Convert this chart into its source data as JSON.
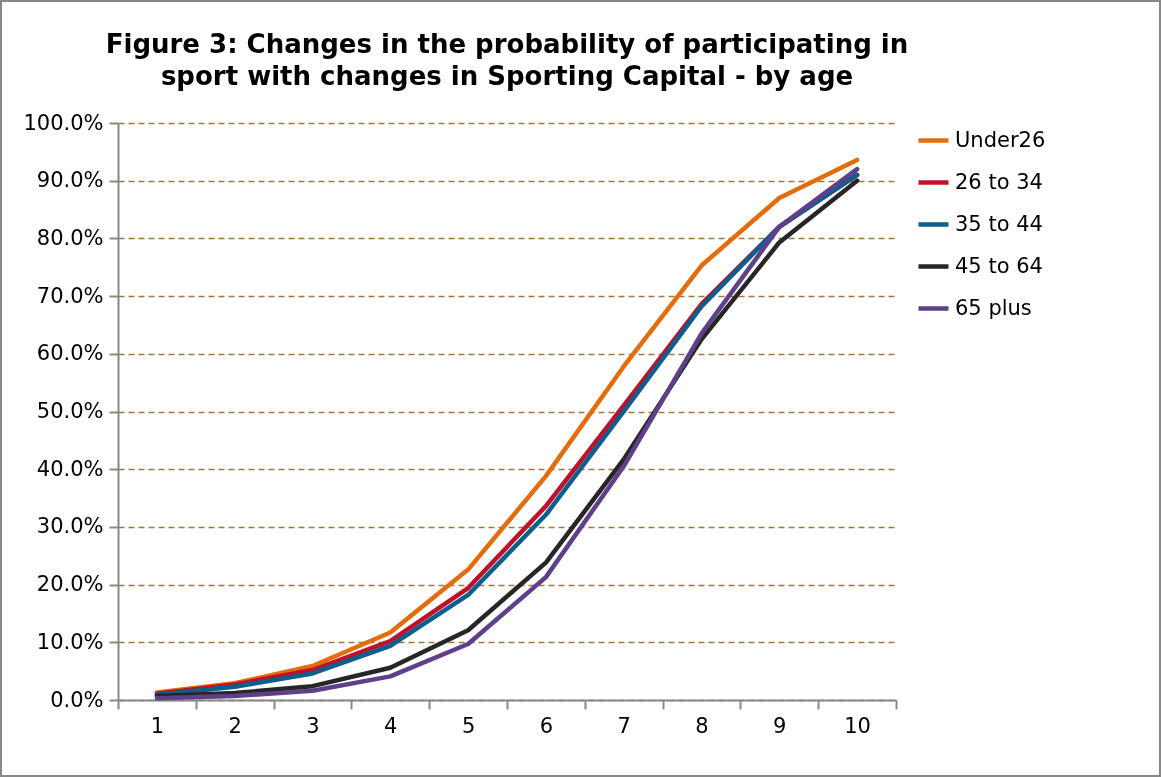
{
  "chart_data": {
    "type": "line",
    "title": "Figure 3: Changes in the probability of participating in sport with changes in Sporting Capital - by age",
    "categories": [
      "1",
      "2",
      "3",
      "4",
      "5",
      "6",
      "7",
      "8",
      "9",
      "10"
    ],
    "series": [
      {
        "name": "Under26",
        "color": "#e46c0a",
        "values": [
          1.3,
          2.9,
          5.9,
          11.7,
          22.6,
          38.8,
          57.8,
          75.3,
          87,
          93.6
        ]
      },
      {
        "name": "26 to 34",
        "color": "#c0102a",
        "values": [
          1.1,
          2.7,
          5.2,
          10.2,
          19.4,
          33.6,
          51,
          68.6,
          82,
          91
        ]
      },
      {
        "name": "35 to 44",
        "color": "#0a5f8f",
        "values": [
          0.9,
          2.3,
          4.6,
          9.4,
          18.2,
          32.1,
          50,
          68.2,
          82,
          91
        ]
      },
      {
        "name": "45 to 64",
        "color": "#262626",
        "values": [
          0.7,
          1.2,
          2.4,
          5.6,
          12.1,
          23.8,
          41.7,
          62.5,
          79.3,
          90
        ]
      },
      {
        "name": "65 plus",
        "color": "#5f3f8a",
        "values": [
          0.3,
          0.7,
          1.6,
          4.1,
          9.7,
          21.3,
          40.5,
          63.5,
          82,
          92
        ]
      }
    ],
    "ylim": [
      0,
      100
    ],
    "yticks": [
      {
        "value": 0,
        "label": "0.0%"
      },
      {
        "value": 10,
        "label": "10.0%"
      },
      {
        "value": 20,
        "label": "20.0%"
      },
      {
        "value": 30,
        "label": "30.0%"
      },
      {
        "value": 40,
        "label": "40.0%"
      },
      {
        "value": 50,
        "label": "50.0%"
      },
      {
        "value": 60,
        "label": "60.0%"
      },
      {
        "value": 70,
        "label": "70.0%"
      },
      {
        "value": 80,
        "label": "80.0%"
      },
      {
        "value": 90,
        "label": "90.0%"
      },
      {
        "value": 100,
        "label": "100.0%"
      }
    ],
    "grid": "y",
    "legend": "right",
    "line_style": "solid",
    "marker": "none"
  }
}
